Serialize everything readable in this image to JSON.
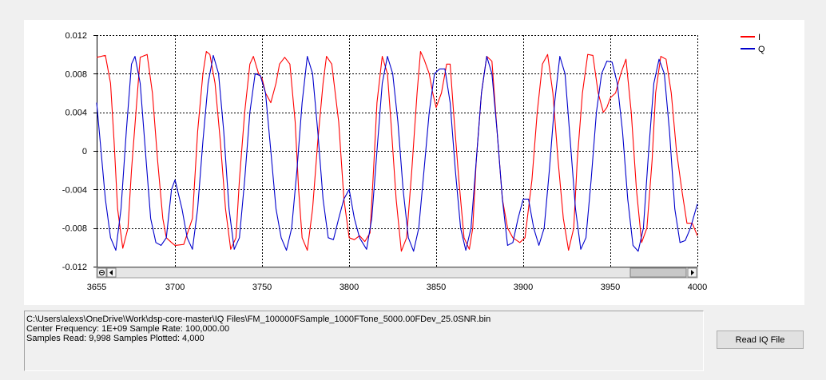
{
  "info": {
    "file_path": "C:\\Users\\alexs\\OneDrive\\Work\\dsp-core-master\\IQ Files\\FM_100000FSample_1000FTone_5000.00FDev_25.0SNR.bin",
    "center_line": "Center Frequency: 1E+09  Sample Rate: 100,000.00",
    "samples_line": "Samples Read: 9,998  Samples Plotted: 4,000"
  },
  "controls": {
    "read_button_label": "Read IQ File"
  },
  "chart_data": {
    "type": "line",
    "title": "",
    "xlabel": "",
    "ylabel": "",
    "xlim": [
      3655,
      4000
    ],
    "ylim": [
      -0.012,
      0.012
    ],
    "x_ticks": [
      3655,
      3700,
      3750,
      3800,
      3850,
      3900,
      3950,
      4000
    ],
    "y_ticks": [
      0.012,
      0.008,
      0.004,
      0,
      -0.004,
      -0.008,
      -0.012
    ],
    "x_tick_labels": [
      "3655",
      "3700",
      "3750",
      "3800",
      "3850",
      "3900",
      "3950",
      "4000"
    ],
    "y_tick_labels": [
      "0.012",
      "0.008",
      "0.004",
      "0",
      "-0.004",
      "-0.008",
      "-0.012"
    ],
    "grid": true,
    "legend_position": "top-right",
    "series": [
      {
        "name": "I",
        "color": "#ff0000",
        "x": [
          3655,
          3660,
          3663,
          3665,
          3667,
          3670,
          3673,
          3675,
          3678,
          3680,
          3684,
          3687,
          3690,
          3693,
          3695,
          3698,
          3700,
          3705,
          3710,
          3713,
          3716,
          3718,
          3720,
          3723,
          3726,
          3729,
          3732,
          3735,
          3737,
          3740,
          3743,
          3745,
          3748,
          3750,
          3752,
          3755,
          3758,
          3760,
          3763,
          3766,
          3769,
          3771,
          3773,
          3776,
          3779,
          3782,
          3785,
          3787,
          3790,
          3794,
          3797,
          3800,
          3803,
          3806,
          3809,
          3812,
          3814,
          3816,
          3819,
          3822,
          3824,
          3827,
          3830,
          3833,
          3836,
          3839,
          3841,
          3843,
          3846,
          3848,
          3850,
          3853,
          3856,
          3858,
          3860,
          3863,
          3866,
          3869,
          3871,
          3873,
          3876,
          3879,
          3882,
          3885,
          3888,
          3891,
          3894,
          3898,
          3901,
          3905,
          3908,
          3911,
          3914,
          3917,
          3920,
          3923,
          3926,
          3929,
          3931,
          3934,
          3937,
          3940,
          3943,
          3946,
          3948,
          3950,
          3953,
          3956,
          3959,
          3962,
          3965,
          3968,
          3971,
          3974,
          3976,
          3979,
          3982,
          3985,
          3988,
          3991,
          3994,
          3997,
          4000
        ],
        "y": [
          0.0097,
          0.0099,
          0.007,
          0.001,
          -0.006,
          -0.0101,
          -0.008,
          -0.002,
          0.005,
          0.0097,
          0.01,
          0.006,
          -0.001,
          -0.007,
          -0.009,
          -0.0095,
          -0.0098,
          -0.0097,
          -0.007,
          0.002,
          0.008,
          0.0103,
          0.01,
          0.007,
          0.001,
          -0.006,
          -0.0102,
          -0.009,
          -0.003,
          0.004,
          0.009,
          0.0098,
          0.008,
          0.0075,
          0.006,
          0.005,
          0.007,
          0.009,
          0.0097,
          0.009,
          0.003,
          -0.004,
          -0.009,
          -0.0103,
          -0.006,
          0.001,
          0.007,
          0.0098,
          0.009,
          0.003,
          -0.005,
          -0.009,
          -0.0092,
          -0.0088,
          -0.0094,
          -0.0085,
          -0.002,
          0.005,
          0.0098,
          0.008,
          0.003,
          -0.005,
          -0.0104,
          -0.009,
          -0.002,
          0.006,
          0.0103,
          0.0095,
          0.008,
          0.006,
          0.0045,
          0.006,
          0.009,
          0.009,
          0.004,
          -0.003,
          -0.009,
          -0.0102,
          -0.008,
          -0.001,
          0.006,
          0.0098,
          0.0093,
          0.002,
          -0.005,
          -0.008,
          -0.009,
          -0.0095,
          -0.009,
          -0.003,
          0.004,
          0.009,
          0.01,
          0.006,
          -0.001,
          -0.007,
          -0.0103,
          -0.008,
          -0.001,
          0.006,
          0.01,
          0.0099,
          0.006,
          0.004,
          0.0045,
          0.0055,
          0.006,
          0.008,
          0.0095,
          0.004,
          -0.004,
          -0.0095,
          -0.008,
          -0.001,
          0.006,
          0.0098,
          0.0095,
          0.006,
          0.0,
          -0.004,
          -0.0075,
          -0.0075,
          -0.0088
        ]
      },
      {
        "name": "Q",
        "color": "#0000cc",
        "x": [
          3655,
          3657,
          3660,
          3663,
          3666,
          3669,
          3672,
          3675,
          3677,
          3680,
          3683,
          3686,
          3689,
          3692,
          3695,
          3698,
          3700,
          3704,
          3707,
          3710,
          3713,
          3716,
          3719,
          3722,
          3725,
          3728,
          3731,
          3734,
          3737,
          3740,
          3743,
          3746,
          3749,
          3752,
          3755,
          3758,
          3761,
          3764,
          3767,
          3770,
          3773,
          3776,
          3779,
          3782,
          3785,
          3788,
          3791,
          3794,
          3797,
          3800,
          3803,
          3806,
          3810,
          3813,
          3816,
          3819,
          3822,
          3825,
          3828,
          3831,
          3834,
          3837,
          3840,
          3843,
          3846,
          3849,
          3852,
          3855,
          3858,
          3861,
          3864,
          3867,
          3870,
          3873,
          3876,
          3879,
          3882,
          3885,
          3888,
          3891,
          3894,
          3897,
          3900,
          3903,
          3906,
          3909,
          3912,
          3915,
          3918,
          3921,
          3924,
          3927,
          3930,
          3933,
          3936,
          3939,
          3942,
          3945,
          3948,
          3951,
          3954,
          3957,
          3960,
          3963,
          3966,
          3969,
          3972,
          3975,
          3978,
          3981,
          3984,
          3987,
          3990,
          3993,
          3996,
          4000
        ],
        "y": [
          0.005,
          0.001,
          -0.005,
          -0.009,
          -0.0103,
          -0.006,
          0.002,
          0.009,
          0.0098,
          0.007,
          0.0,
          -0.007,
          -0.0095,
          -0.0098,
          -0.009,
          -0.004,
          -0.003,
          -0.006,
          -0.009,
          -0.0102,
          -0.006,
          0.001,
          0.007,
          0.0099,
          0.008,
          0.002,
          -0.006,
          -0.0102,
          -0.009,
          -0.003,
          0.004,
          0.008,
          0.0078,
          0.006,
          0.0,
          -0.006,
          -0.009,
          -0.0103,
          -0.008,
          -0.002,
          0.005,
          0.0098,
          0.008,
          0.002,
          -0.005,
          -0.009,
          -0.0092,
          -0.007,
          -0.005,
          -0.004,
          -0.007,
          -0.009,
          -0.0102,
          -0.007,
          0.0,
          0.007,
          0.0098,
          0.008,
          0.003,
          -0.004,
          -0.009,
          -0.0104,
          -0.008,
          -0.002,
          0.004,
          0.008,
          0.0085,
          0.0085,
          0.005,
          -0.002,
          -0.008,
          -0.0103,
          -0.008,
          -0.001,
          0.006,
          0.0098,
          0.008,
          0.002,
          -0.005,
          -0.0098,
          -0.0095,
          -0.007,
          -0.005,
          -0.005,
          -0.008,
          -0.0098,
          -0.008,
          -0.002,
          0.005,
          0.0098,
          0.008,
          0.001,
          -0.006,
          -0.0102,
          -0.009,
          -0.003,
          0.004,
          0.008,
          0.0093,
          0.0092,
          0.007,
          0.002,
          -0.005,
          -0.0098,
          -0.0104,
          -0.008,
          0.0,
          0.007,
          0.0095,
          0.008,
          0.002,
          -0.006,
          -0.0095,
          -0.0093,
          -0.008,
          -0.0055
        ]
      }
    ]
  }
}
